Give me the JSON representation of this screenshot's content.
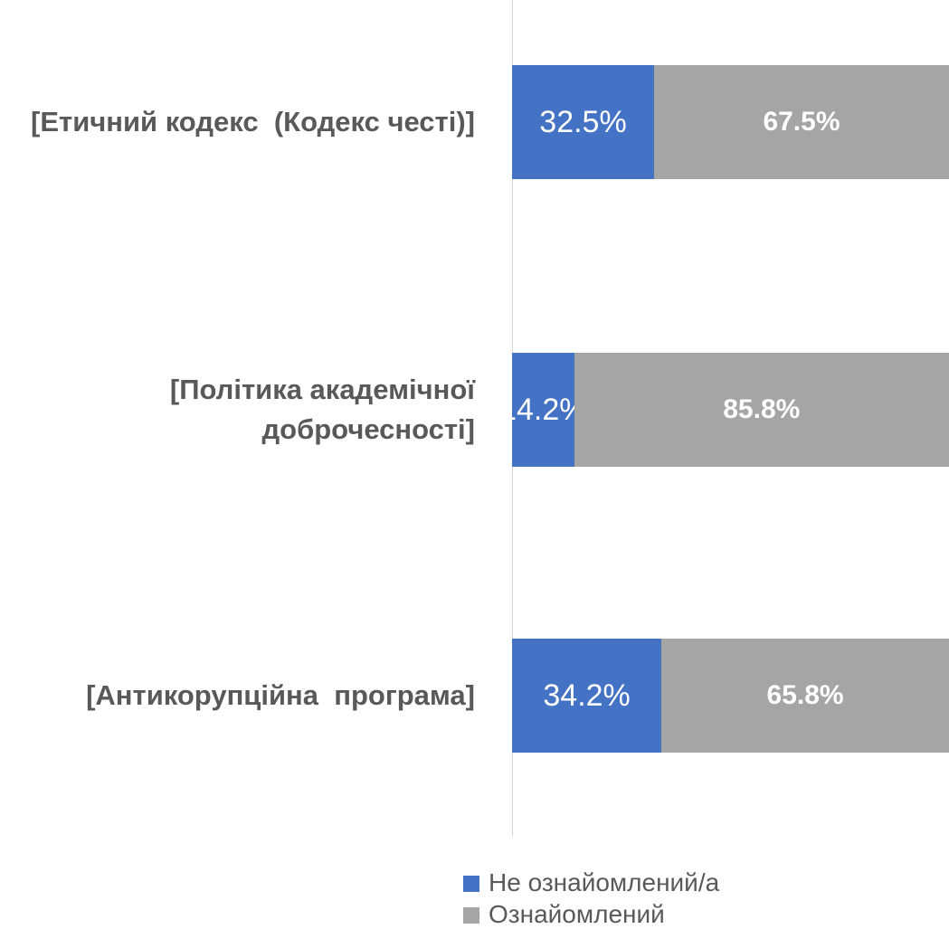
{
  "chart_data": {
    "type": "stacked-barh",
    "categories": [
      "[Етичний кодекс  (Кодекс честі)]",
      "[Політика академічної доброчесності]",
      "[Антикорупційна  програма]"
    ],
    "series": [
      {
        "name": "Не ознайомлений/а",
        "color": "#4472c4",
        "values": [
          32.5,
          14.2,
          34.2
        ],
        "value_labels": [
          "32.5%",
          "14.2%",
          "34.2%"
        ],
        "label_bold": false
      },
      {
        "name": "Ознайомлений",
        "color": "#a5a5a5",
        "values": [
          67.5,
          85.8,
          65.8
        ],
        "value_labels": [
          "67.5%",
          "85.8%",
          "65.8%"
        ],
        "label_bold": true
      }
    ],
    "xlim": [
      0,
      100
    ]
  }
}
